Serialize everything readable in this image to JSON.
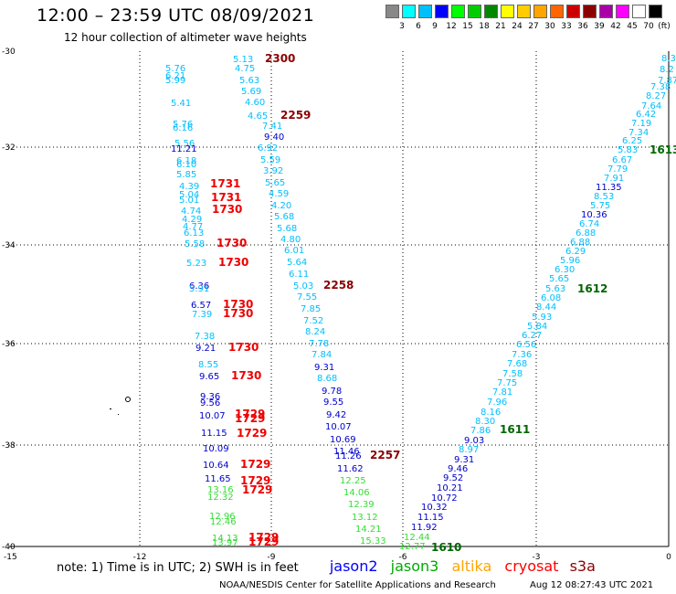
{
  "header": {
    "title": "12:00 – 23:59 UTC 08/09/2021",
    "subtitle": "12 hour collection of altimeter wave heights"
  },
  "legend": {
    "unit": "(ft)",
    "colors": [
      "#888888",
      "#00ffff",
      "#00bfff",
      "#0000ff",
      "#00ff00",
      "#00cc00",
      "#008800",
      "#ffff00",
      "#ffcc00",
      "#ffa500",
      "#ff6600",
      "#cc0000",
      "#8b0000",
      "#aa00aa",
      "#ff00ff",
      "#ffffff",
      "#000000"
    ],
    "labels": [
      "3",
      "6",
      "9",
      "12",
      "15",
      "18",
      "21",
      "24",
      "27",
      "30",
      "33",
      "36",
      "39",
      "42",
      "45",
      "70"
    ]
  },
  "map": {
    "lon_ticks": [
      "-15",
      "-12",
      "-9",
      "-6",
      "-3",
      "0"
    ],
    "lat_ticks": [
      "-30",
      "-32",
      "-34",
      "-36",
      "-38",
      "-40"
    ],
    "obs": [
      [
        "5.13",
        255,
        68,
        "#00bfff"
      ],
      [
        "4.75",
        257,
        78,
        "#00bfff"
      ],
      [
        "5.63",
        262,
        91,
        "#00bfff"
      ],
      [
        "5.69",
        264,
        103,
        "#00bfff"
      ],
      [
        "4.60",
        268,
        115,
        "#00bfff"
      ],
      [
        "4.65",
        271,
        130,
        "#00bfff"
      ],
      [
        "7.41",
        287,
        141,
        "#00bfff"
      ],
      [
        "9.40",
        289,
        153,
        "#0000cc"
      ],
      [
        "6.92",
        282,
        165,
        "#00bfff"
      ],
      [
        "5.59",
        285,
        178,
        "#00bfff"
      ],
      [
        "3.92",
        288,
        190,
        "#00bfff"
      ],
      [
        "5.65",
        290,
        203,
        "#00bfff"
      ],
      [
        "4.59",
        294,
        215,
        "#00bfff"
      ],
      [
        "4.20",
        297,
        228,
        "#00bfff"
      ],
      [
        "5.68",
        300,
        240,
        "#00bfff"
      ],
      [
        "5.68",
        303,
        253,
        "#00bfff"
      ],
      [
        "4.80",
        307,
        265,
        "#00bfff"
      ],
      [
        "6.01",
        311,
        277,
        "#00bfff"
      ],
      [
        "5.64",
        314,
        290,
        "#00bfff"
      ],
      [
        "6.11",
        316,
        303,
        "#00bfff"
      ],
      [
        "5.03",
        321,
        316,
        "#00bfff"
      ],
      [
        "7.55",
        325,
        328,
        "#00bfff"
      ],
      [
        "7.85",
        329,
        341,
        "#00bfff"
      ],
      [
        "7.52",
        332,
        354,
        "#00bfff"
      ],
      [
        "8.24",
        334,
        366,
        "#00bfff"
      ],
      [
        "7.78",
        338,
        379,
        "#00bfff"
      ],
      [
        "7.84",
        341,
        391,
        "#00bfff"
      ],
      [
        "9.31",
        344,
        405,
        "#0000cc"
      ],
      [
        "8.68",
        347,
        417,
        "#00bfff"
      ],
      [
        "9.78",
        352,
        431,
        "#0000cc"
      ],
      [
        "9.55",
        354,
        443,
        "#0000cc"
      ],
      [
        "9.42",
        357,
        457,
        "#0000cc"
      ],
      [
        "10.07",
        356,
        470,
        "#0000cc"
      ],
      [
        "10.69",
        361,
        484,
        "#0000cc"
      ],
      [
        "11.46",
        365,
        497,
        "#0000cc"
      ],
      [
        "11.26",
        367,
        502,
        "#0000cc"
      ],
      [
        "11.62",
        369,
        516,
        "#0000cc"
      ],
      [
        "12.25",
        372,
        529,
        "#33dd33"
      ],
      [
        "14.06",
        376,
        542,
        "#33dd33"
      ],
      [
        "12.39",
        381,
        555,
        "#33dd33"
      ],
      [
        "13.12",
        385,
        569,
        "#33dd33"
      ],
      [
        "14.21",
        389,
        582,
        "#33dd33"
      ],
      [
        "15.33",
        394,
        595,
        "#33dd33"
      ],
      [
        "5.76",
        181,
        78,
        "#00bfff"
      ],
      [
        "6.21",
        181,
        86,
        "#00bfff"
      ],
      [
        "5.99",
        181,
        91,
        "#00bfff"
      ],
      [
        "5.41",
        187,
        116,
        "#00bfff"
      ],
      [
        "5.76",
        189,
        139,
        "#00bfff"
      ],
      [
        "6.16",
        189,
        143,
        "#00bfff"
      ],
      [
        "5.56",
        191,
        160,
        "#00bfff"
      ],
      [
        "11.21",
        187,
        166,
        "#0000cc"
      ],
      [
        "6.18",
        193,
        179,
        "#00bfff"
      ],
      [
        "6.10",
        193,
        183,
        "#00bfff"
      ],
      [
        "5.85",
        193,
        194,
        "#00bfff"
      ],
      [
        "4.39",
        196,
        207,
        "#00bfff"
      ],
      [
        "5.04",
        196,
        216,
        "#00bfff"
      ],
      [
        "5.01",
        196,
        222,
        "#00bfff"
      ],
      [
        "4.74",
        198,
        234,
        "#00bfff"
      ],
      [
        "4.29",
        199,
        243,
        "#00bfff"
      ],
      [
        "4.77",
        200,
        251,
        "#00bfff"
      ],
      [
        "6.13",
        201,
        258,
        "#00bfff"
      ],
      [
        "5.58",
        202,
        270,
        "#00bfff"
      ],
      [
        "5.23",
        204,
        291,
        "#00bfff"
      ],
      [
        "6.36",
        207,
        316,
        "#0000cc"
      ],
      [
        "5.91",
        207,
        319,
        "#00bfff"
      ],
      [
        "6.57",
        209,
        337,
        "#0000cc"
      ],
      [
        "7.39",
        210,
        347,
        "#00bfff"
      ],
      [
        "7.38",
        213,
        371,
        "#00bfff"
      ],
      [
        "9.21",
        214,
        384,
        "#0000cc"
      ],
      [
        "8.55",
        217,
        402,
        "#00bfff"
      ],
      [
        "9.65",
        218,
        415,
        "#0000cc"
      ],
      [
        "9.36",
        219,
        437,
        "#0000cc"
      ],
      [
        "9.56",
        219,
        444,
        "#0000cc"
      ],
      [
        "10.07",
        218,
        458,
        "#0000cc"
      ],
      [
        "11.15",
        220,
        477,
        "#0000cc"
      ],
      [
        "10.09",
        222,
        494,
        "#0000cc"
      ],
      [
        "10.64",
        222,
        512,
        "#0000cc"
      ],
      [
        "11.65",
        224,
        527,
        "#0000cc"
      ],
      [
        "13.16",
        227,
        539,
        "#33dd33"
      ],
      [
        "12.32",
        227,
        547,
        "#33dd33"
      ],
      [
        "12.96",
        229,
        568,
        "#33dd33"
      ],
      [
        "12.46",
        230,
        574,
        "#33dd33"
      ],
      [
        "14.13",
        232,
        592,
        "#33dd33"
      ],
      [
        "13.97",
        232,
        597,
        "#33dd33"
      ],
      [
        "8.3",
        724,
        67,
        "#00bfff"
      ],
      [
        "8.2",
        722,
        79,
        "#00bfff"
      ],
      [
        "7.87",
        720,
        91,
        "#00bfff"
      ],
      [
        "7.38",
        712,
        98,
        "#00bfff"
      ],
      [
        "8.27",
        707,
        108,
        "#00bfff"
      ],
      [
        "7.64",
        702,
        119,
        "#00bfff"
      ],
      [
        "6.42",
        696,
        128,
        "#00bfff"
      ],
      [
        "7.19",
        691,
        138,
        "#00bfff"
      ],
      [
        "7.34",
        688,
        148,
        "#00bfff"
      ],
      [
        "6.25",
        681,
        157,
        "#00bfff"
      ],
      [
        "5.83",
        676,
        167,
        "#00bfff"
      ],
      [
        "6.67",
        670,
        178,
        "#00bfff"
      ],
      [
        "7.79",
        665,
        188,
        "#00bfff"
      ],
      [
        "7.91",
        661,
        198,
        "#00bfff"
      ],
      [
        "11.35",
        652,
        208,
        "#0000cc"
      ],
      [
        "8.53",
        650,
        218,
        "#00bfff"
      ],
      [
        "5.75",
        646,
        228,
        "#00bfff"
      ],
      [
        "10.36",
        636,
        238,
        "#0000cc"
      ],
      [
        "6.74",
        634,
        248,
        "#00bfff"
      ],
      [
        "6.88",
        630,
        258,
        "#00bfff"
      ],
      [
        "6.88",
        624,
        268,
        "#00bfff"
      ],
      [
        "6.29",
        619,
        278,
        "#00bfff"
      ],
      [
        "5.96",
        613,
        288,
        "#00bfff"
      ],
      [
        "6.30",
        607,
        298,
        "#00bfff"
      ],
      [
        "5.65",
        601,
        308,
        "#00bfff"
      ],
      [
        "5.63",
        597,
        319,
        "#00bfff"
      ],
      [
        "6.08",
        592,
        329,
        "#00bfff"
      ],
      [
        "8.44",
        587,
        339,
        "#00bfff"
      ],
      [
        "5.93",
        582,
        350,
        "#00bfff"
      ],
      [
        "5.84",
        577,
        360,
        "#00bfff"
      ],
      [
        "6.27",
        571,
        370,
        "#00bfff"
      ],
      [
        "6.56",
        565,
        380,
        "#00bfff"
      ],
      [
        "7.36",
        560,
        391,
        "#00bfff"
      ],
      [
        "7.68",
        555,
        401,
        "#00bfff"
      ],
      [
        "7.58",
        550,
        412,
        "#00bfff"
      ],
      [
        "7.75",
        544,
        422,
        "#00bfff"
      ],
      [
        "7.81",
        539,
        432,
        "#00bfff"
      ],
      [
        "7.96",
        533,
        443,
        "#00bfff"
      ],
      [
        "8.16",
        526,
        454,
        "#00bfff"
      ],
      [
        "8.30",
        520,
        464,
        "#00bfff"
      ],
      [
        "7.86",
        515,
        474,
        "#00bfff"
      ],
      [
        "9.03",
        508,
        485,
        "#0000cc"
      ],
      [
        "8.97",
        502,
        495,
        "#00bfff"
      ],
      [
        "9.31",
        497,
        506,
        "#0000cc"
      ],
      [
        "9.46",
        490,
        516,
        "#0000cc"
      ],
      [
        "9.52",
        485,
        526,
        "#0000cc"
      ],
      [
        "10.21",
        478,
        537,
        "#0000cc"
      ],
      [
        "10.72",
        472,
        548,
        "#0000cc"
      ],
      [
        "10.32",
        461,
        558,
        "#0000cc"
      ],
      [
        "11.15",
        457,
        569,
        "#0000cc"
      ],
      [
        "11.92",
        450,
        580,
        "#0000cc"
      ],
      [
        "12.44",
        442,
        591,
        "#33dd33"
      ],
      [
        "12.77",
        437,
        601,
        "#33dd33"
      ]
    ],
    "times": [
      [
        "2300",
        290,
        68,
        "#8b0000"
      ],
      [
        "2259",
        307,
        130,
        "#8b0000"
      ],
      [
        "2258",
        354,
        316,
        "#8b0000"
      ],
      [
        "2257",
        405,
        502,
        "#8b0000"
      ],
      [
        "1731",
        230,
        205,
        "#ee0000"
      ],
      [
        "1731",
        231,
        220,
        "#ee0000"
      ],
      [
        "1730",
        232,
        233,
        "#ee0000"
      ],
      [
        "1730",
        237,
        270,
        "#ee0000"
      ],
      [
        "1730",
        239,
        291,
        "#ee0000"
      ],
      [
        "1730",
        244,
        337,
        "#ee0000"
      ],
      [
        "1730",
        244,
        347,
        "#ee0000"
      ],
      [
        "1730",
        250,
        384,
        "#ee0000"
      ],
      [
        "1730",
        253,
        415,
        "#ee0000"
      ],
      [
        "1729",
        257,
        457,
        "#ee0000"
      ],
      [
        "1729",
        257,
        462,
        "#ee0000"
      ],
      [
        "1729",
        259,
        478,
        "#ee0000"
      ],
      [
        "1729",
        263,
        512,
        "#ee0000"
      ],
      [
        "1729",
        263,
        530,
        "#ee0000"
      ],
      [
        "1729",
        265,
        540,
        "#ee0000"
      ],
      [
        "1729",
        272,
        592,
        "#ee0000"
      ],
      [
        "1729",
        272,
        597,
        "#ee0000"
      ],
      [
        "1613",
        711,
        168,
        "#006600"
      ],
      [
        "1612",
        632,
        320,
        "#006600"
      ],
      [
        "1611",
        547,
        474,
        "#006600"
      ],
      [
        "1610",
        472,
        603,
        "#006600"
      ]
    ]
  },
  "footer": {
    "note": "note: 1) Time is in UTC; 2) SWH is in feet",
    "satellites": [
      {
        "name": "jason2",
        "color": "#0000ff"
      },
      {
        "name": "jason3",
        "color": "#00aa00"
      },
      {
        "name": "altika",
        "color": "#ffa500"
      },
      {
        "name": "cryosat",
        "color": "#ff0000"
      },
      {
        "name": "s3a",
        "color": "#8b0000"
      }
    ],
    "credit": "NOAA/NESDIS Center for Satellite Applications and Research",
    "timestamp": "Aug 12 08:27:43 UTC 2021"
  }
}
